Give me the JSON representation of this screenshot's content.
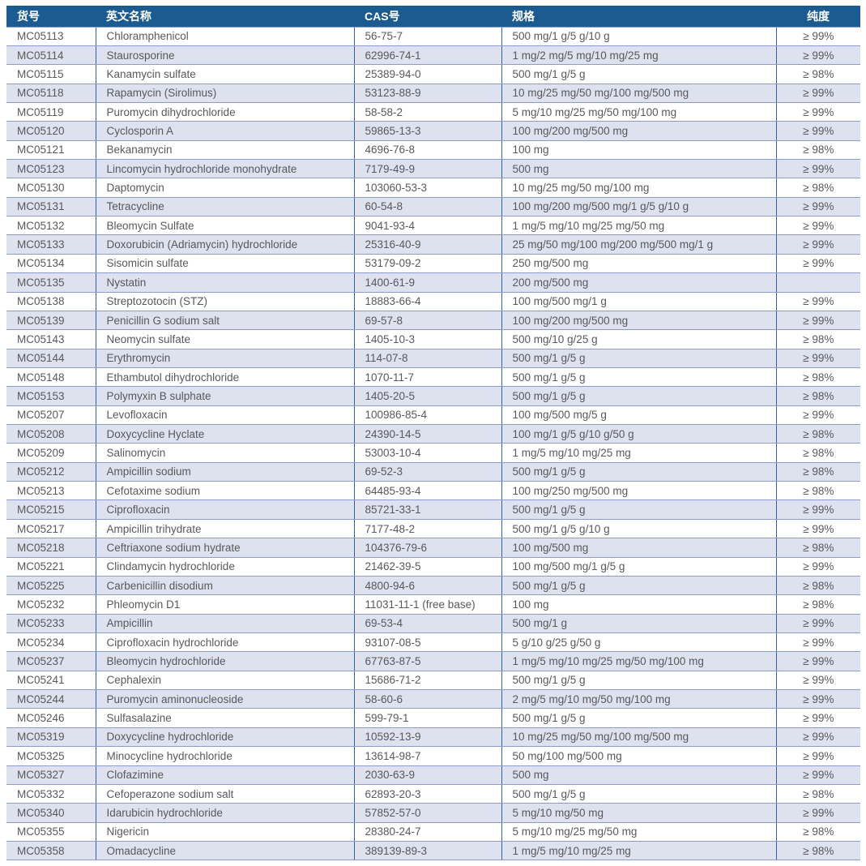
{
  "table": {
    "columns": [
      {
        "key": "catalog",
        "label": "货号"
      },
      {
        "key": "name",
        "label": "英文名称"
      },
      {
        "key": "cas",
        "label": "CAS号"
      },
      {
        "key": "spec",
        "label": "规格"
      },
      {
        "key": "purity",
        "label": "纯度"
      }
    ],
    "rows": [
      [
        "MC05113",
        "Chloramphenicol",
        "56-75-7",
        "500 mg/1 g/5 g/10 g",
        "≥ 99%"
      ],
      [
        "MC05114",
        "Staurosporine",
        "62996-74-1",
        "1 mg/2 mg/5 mg/10 mg/25 mg",
        "≥ 99%"
      ],
      [
        "MC05115",
        "Kanamycin sulfate",
        "25389-94-0",
        "500 mg/1 g/5 g",
        "≥ 98%"
      ],
      [
        "MC05118",
        "Rapamycin (Sirolimus)",
        "53123-88-9",
        "10 mg/25 mg/50 mg/100 mg/500 mg",
        "≥ 99%"
      ],
      [
        "MC05119",
        "Puromycin dihydrochloride",
        "58-58-2",
        "5 mg/10 mg/25 mg/50 mg/100 mg",
        "≥ 99%"
      ],
      [
        "MC05120",
        "Cyclosporin A",
        "59865-13-3",
        "100 mg/200 mg/500 mg",
        "≥ 99%"
      ],
      [
        "MC05121",
        "Bekanamycin",
        "4696-76-8",
        "100 mg",
        "≥ 98%"
      ],
      [
        "MC05123",
        "Lincomycin hydrochloride monohydrate",
        "7179-49-9",
        "500 mg",
        "≥ 99%"
      ],
      [
        "MC05130",
        "Daptomycin",
        "103060-53-3",
        "10 mg/25 mg/50 mg/100 mg",
        "≥ 98%"
      ],
      [
        "MC05131",
        "Tetracycline",
        "60-54-8",
        "100 mg/200 mg/500 mg/1 g/5 g/10 g",
        "≥ 99%"
      ],
      [
        "MC05132",
        "Bleomycin Sulfate",
        "9041-93-4",
        "1 mg/5 mg/10 mg/25 mg/50 mg",
        "≥ 99%"
      ],
      [
        "MC05133",
        "Doxorubicin (Adriamycin) hydrochloride",
        "25316-40-9",
        "25 mg/50 mg/100 mg/200 mg/500 mg/1 g",
        "≥ 99%"
      ],
      [
        "MC05134",
        "Sisomicin sulfate",
        "53179-09-2",
        "250 mg/500 mg",
        "≥ 99%"
      ],
      [
        "MC05135",
        "Nystatin",
        "1400-61-9",
        "200 mg/500 mg",
        ""
      ],
      [
        "MC05138",
        "Streptozotocin (STZ)",
        "18883-66-4",
        "100 mg/500 mg/1 g",
        "≥ 99%"
      ],
      [
        "MC05139",
        "Penicillin G sodium salt",
        "69-57-8",
        "100 mg/200 mg/500 mg",
        "≥ 99%"
      ],
      [
        "MC05143",
        "Neomycin sulfate",
        "1405-10-3",
        "500 mg/10 g/25 g",
        "≥ 98%"
      ],
      [
        "MC05144",
        "Erythromycin",
        "114-07-8",
        "500 mg/1 g/5 g",
        "≥ 99%"
      ],
      [
        "MC05148",
        "Ethambutol dihydrochloride",
        "1070-11-7",
        "500 mg/1 g/5 g",
        "≥ 98%"
      ],
      [
        "MC05153",
        "Polymyxin B sulphate",
        "1405-20-5",
        "500 mg/1 g/5 g",
        "≥ 98%"
      ],
      [
        "MC05207",
        "Levofloxacin",
        "100986-85-4",
        "100 mg/500 mg/5 g",
        "≥ 99%"
      ],
      [
        "MC05208",
        "Doxycycline Hyclate",
        "24390-14-5",
        "100 mg/1 g/5 g/10 g/50 g",
        "≥ 98%"
      ],
      [
        "MC05209",
        "Salinomycin",
        "53003-10-4",
        "1 mg/5 mg/10 mg/25 mg",
        "≥ 98%"
      ],
      [
        "MC05212",
        "Ampicillin sodium",
        "69-52-3",
        "500 mg/1 g/5 g",
        "≥ 98%"
      ],
      [
        "MC05213",
        "Cefotaxime sodium",
        "64485-93-4",
        "100 mg/250 mg/500 mg",
        "≥ 98%"
      ],
      [
        "MC05215",
        "Ciprofloxacin",
        "85721-33-1",
        "500 mg/1 g/5 g",
        "≥ 99%"
      ],
      [
        "MC05217",
        "Ampicillin trihydrate",
        "7177-48-2",
        "500 mg/1 g/5 g/10 g",
        "≥ 99%"
      ],
      [
        "MC05218",
        "Ceftriaxone sodium hydrate",
        "104376-79-6",
        "100 mg/500 mg",
        "≥ 98%"
      ],
      [
        "MC05221",
        "Clindamycin hydrochloride",
        "21462-39-5",
        "100 mg/500 mg/1 g/5 g",
        "≥ 99%"
      ],
      [
        "MC05225",
        "Carbenicillin disodium",
        "4800-94-6",
        "500 mg/1 g/5 g",
        "≥ 98%"
      ],
      [
        "MC05232",
        "Phleomycin D1",
        "11031-11-1 (free base)",
        "100 mg",
        "≥ 98%"
      ],
      [
        "MC05233",
        "Ampicillin",
        "69-53-4",
        "500 mg/1 g",
        "≥ 99%"
      ],
      [
        "MC05234",
        "Ciprofloxacin hydrochloride",
        "93107-08-5",
        "5 g/10 g/25 g/50 g",
        "≥ 99%"
      ],
      [
        "MC05237",
        "Bleomycin hydrochloride",
        "67763-87-5",
        "1 mg/5 mg/10 mg/25 mg/50 mg/100 mg",
        "≥ 99%"
      ],
      [
        "MC05241",
        "Cephalexin",
        "15686-71-2",
        "500 mg/1 g/5 g",
        "≥ 99%"
      ],
      [
        "MC05244",
        "Puromycin aminonucleoside",
        "58-60-6",
        "2 mg/5 mg/10 mg/50 mg/100 mg",
        "≥ 99%"
      ],
      [
        "MC05246",
        "Sulfasalazine",
        "599-79-1",
        "500 mg/1 g/5 g",
        "≥ 99%"
      ],
      [
        "MC05319",
        "Doxycycline hydrochloride",
        "10592-13-9",
        "10 mg/25 mg/50 mg/100 mg/500 mg",
        "≥ 99%"
      ],
      [
        "MC05325",
        "Minocycline hydrochloride",
        "13614-98-7",
        "50 mg/100 mg/500 mg",
        "≥ 99%"
      ],
      [
        "MC05327",
        "Clofazimine",
        "2030-63-9",
        "500 mg",
        "≥ 99%"
      ],
      [
        "MC05332",
        "Cefoperazone sodium salt",
        "62893-20-3",
        "500 mg/1 g/5 g",
        "≥ 98%"
      ],
      [
        "MC05340",
        "Idarubicin hydrochloride",
        "57852-57-0",
        "5 mg/10 mg/50 mg",
        "≥ 99%"
      ],
      [
        "MC05355",
        "Nigericin",
        "28380-24-7",
        "5 mg/10 mg/25 mg/50 mg",
        "≥ 98%"
      ],
      [
        "MC05358",
        "Omadacycline",
        "389139-89-3",
        "1 mg/5 mg/10 mg/25 mg",
        "≥ 98%"
      ]
    ]
  },
  "colors": {
    "header_bg": "#1b5b90",
    "header_text": "#ffffff",
    "row_alt_bg": "#dee1ee",
    "row_bg": "#ffffff",
    "h_border": "#8a9cc7",
    "v_border": "#31639e",
    "body_text": "#58595b"
  }
}
